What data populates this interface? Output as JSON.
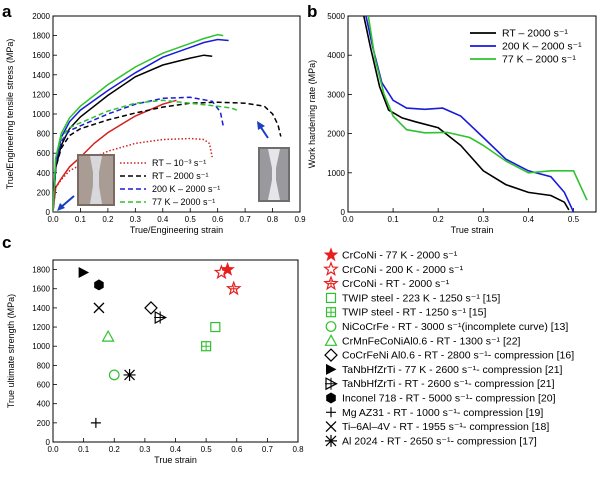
{
  "panel_labels": {
    "a": "a",
    "b": "b",
    "c": "c"
  },
  "chart_data": [
    {
      "panel": "a",
      "type": "line",
      "xlabel": "True/Engineering strain",
      "ylabel": "True/Engineering tensile stress (MPa)",
      "xlim": [
        0.0,
        0.9
      ],
      "ylim": [
        0,
        2000
      ],
      "xticks": [
        "0.0",
        "0.1",
        "0.2",
        "0.3",
        "0.4",
        "0.5",
        "0.6",
        "0.7",
        "0.8",
        "0.9"
      ],
      "yticks": [
        "0",
        "200",
        "400",
        "600",
        "800",
        "1000",
        "1200",
        "1400",
        "1600",
        "1800",
        "2000"
      ],
      "legend_position": "bottom-right",
      "series": [
        {
          "name": "RT – 10⁻³ s⁻¹",
          "color": "#d42020",
          "dash": "dotted",
          "kind": "engineering",
          "x": [
            0,
            0.01,
            0.03,
            0.06,
            0.1,
            0.15,
            0.2,
            0.3,
            0.4,
            0.5,
            0.55,
            0.57,
            0.58
          ],
          "y": [
            0,
            250,
            330,
            420,
            480,
            560,
            620,
            700,
            740,
            750,
            740,
            700,
            560
          ]
        },
        {
          "name": "RT – 10⁻³ s⁻¹",
          "color": "#d42020",
          "dash": "solid",
          "kind": "true",
          "x": [
            0,
            0.01,
            0.03,
            0.06,
            0.1,
            0.15,
            0.2,
            0.3,
            0.4,
            0.45
          ],
          "y": [
            0,
            250,
            340,
            460,
            560,
            700,
            810,
            980,
            1100,
            1140
          ]
        },
        {
          "name": "RT – 2000 s⁻¹",
          "color": "#000000",
          "dash": "dashed",
          "kind": "engineering",
          "x": [
            0,
            0.01,
            0.03,
            0.06,
            0.1,
            0.2,
            0.3,
            0.4,
            0.5,
            0.6,
            0.7,
            0.77,
            0.8,
            0.82,
            0.83
          ],
          "y": [
            0,
            450,
            650,
            780,
            850,
            940,
            1010,
            1070,
            1110,
            1120,
            1110,
            1080,
            1000,
            890,
            770
          ]
        },
        {
          "name": "RT – 2000 s⁻¹",
          "color": "#000000",
          "dash": "solid",
          "kind": "true",
          "x": [
            0,
            0.01,
            0.03,
            0.06,
            0.1,
            0.2,
            0.3,
            0.4,
            0.5,
            0.55,
            0.58
          ],
          "y": [
            0,
            450,
            680,
            850,
            970,
            1190,
            1380,
            1500,
            1570,
            1600,
            1590
          ]
        },
        {
          "name": "200 K – 2000 s⁻¹",
          "color": "#1a1adb",
          "dash": "dashed",
          "kind": "engineering",
          "x": [
            0,
            0.01,
            0.03,
            0.06,
            0.1,
            0.2,
            0.3,
            0.4,
            0.5,
            0.58,
            0.61,
            0.62
          ],
          "y": [
            0,
            500,
            720,
            830,
            880,
            1000,
            1100,
            1160,
            1170,
            1130,
            1020,
            880
          ]
        },
        {
          "name": "200 K – 2000 s⁻¹",
          "color": "#1a1adb",
          "dash": "solid",
          "kind": "true",
          "x": [
            0,
            0.01,
            0.03,
            0.06,
            0.1,
            0.2,
            0.3,
            0.4,
            0.5,
            0.55,
            0.6,
            0.64
          ],
          "y": [
            0,
            500,
            760,
            920,
            1040,
            1240,
            1420,
            1580,
            1680,
            1730,
            1760,
            1750
          ]
        },
        {
          "name": "77 K – 2000 s⁻¹",
          "color": "#2ec22e",
          "dash": "dashed",
          "kind": "engineering",
          "x": [
            0,
            0.01,
            0.03,
            0.06,
            0.1,
            0.2,
            0.3,
            0.4,
            0.5,
            0.6,
            0.65,
            0.67
          ],
          "y": [
            0,
            550,
            760,
            860,
            910,
            1030,
            1110,
            1140,
            1110,
            1080,
            1060,
            1040
          ]
        },
        {
          "name": "77 K – 2000 s⁻¹",
          "color": "#2ec22e",
          "dash": "solid",
          "kind": "true",
          "x": [
            0,
            0.01,
            0.03,
            0.06,
            0.1,
            0.2,
            0.3,
            0.4,
            0.5,
            0.55,
            0.6,
            0.62
          ],
          "y": [
            0,
            550,
            800,
            960,
            1080,
            1300,
            1480,
            1620,
            1720,
            1770,
            1810,
            1800
          ]
        }
      ]
    },
    {
      "panel": "b",
      "type": "line",
      "xlabel": "True strain",
      "ylabel": "Work hardening rate (MPa)",
      "xlim": [
        0.0,
        0.55
      ],
      "ylim": [
        0,
        5000
      ],
      "xticks": [
        "0.0",
        "0.1",
        "0.2",
        "0.3",
        "0.4",
        "0.5"
      ],
      "yticks": [
        "0",
        "1000",
        "2000",
        "3000",
        "4000",
        "5000"
      ],
      "legend_position": "top-right",
      "series": [
        {
          "name": "RT – 2000 s⁻¹",
          "color": "#000000",
          "x": [
            0.035,
            0.05,
            0.07,
            0.09,
            0.12,
            0.15,
            0.2,
            0.25,
            0.3,
            0.35,
            0.4,
            0.45,
            0.48,
            0.49
          ],
          "y": [
            5000,
            4200,
            3200,
            2600,
            2400,
            2300,
            2150,
            1700,
            1050,
            700,
            500,
            420,
            250,
            50
          ]
        },
        {
          "name": "200 K – 2000 s⁻¹",
          "color": "#1a1adb",
          "x": [
            0.04,
            0.055,
            0.075,
            0.1,
            0.13,
            0.17,
            0.21,
            0.25,
            0.3,
            0.35,
            0.4,
            0.45,
            0.48,
            0.5
          ],
          "y": [
            5000,
            4200,
            3300,
            2850,
            2650,
            2620,
            2650,
            2450,
            1900,
            1350,
            1050,
            900,
            500,
            0
          ]
        },
        {
          "name": "77 K – 2000 s⁻¹",
          "color": "#2ec22e",
          "x": [
            0.045,
            0.06,
            0.08,
            0.1,
            0.13,
            0.17,
            0.22,
            0.27,
            0.3,
            0.35,
            0.4,
            0.45,
            0.5,
            0.53
          ],
          "y": [
            5000,
            3900,
            3000,
            2450,
            2100,
            2020,
            2030,
            1900,
            1700,
            1300,
            1000,
            1050,
            1050,
            300
          ]
        }
      ]
    },
    {
      "panel": "c",
      "type": "scatter",
      "xlabel": "True strain",
      "ylabel": "True ultimate strength (MPa)",
      "xlim": [
        0.0,
        0.8
      ],
      "ylim": [
        0,
        1900
      ],
      "xticks": [
        "0.0",
        "0.1",
        "0.2",
        "0.3",
        "0.4",
        "0.5",
        "0.6",
        "0.7",
        "0.8"
      ],
      "yticks": [
        "0",
        "200",
        "400",
        "600",
        "800",
        "1000",
        "1200",
        "1400",
        "1600",
        "1800"
      ],
      "legend_position": "right, outside",
      "series": [
        {
          "name": "CrCoNi - 77 K - 2000 s⁻¹",
          "marker": "star-filled",
          "color": "#e81e1e",
          "x": [
            0.57
          ],
          "y": [
            1800
          ]
        },
        {
          "name": "CrCoNi - 200 K - 2000 s⁻¹",
          "marker": "star-open",
          "color": "#e81e1e",
          "x": [
            0.55
          ],
          "y": [
            1770
          ]
        },
        {
          "name": "CrCoNi - RT - 2000 s⁻¹",
          "marker": "star-plus",
          "color": "#e81e1e",
          "x": [
            0.59
          ],
          "y": [
            1600
          ]
        },
        {
          "name": "TWIP steel - 223 K - 1250 s⁻¹ [15]",
          "marker": "square-open",
          "color": "#2ec22e",
          "x": [
            0.53
          ],
          "y": [
            1200
          ]
        },
        {
          "name": "TWIP steel - RT - 1250 s⁻¹ [15]",
          "marker": "square-plus",
          "color": "#2ec22e",
          "x": [
            0.5
          ],
          "y": [
            1000
          ]
        },
        {
          "name": "NiCoCrFe - RT - 3000 s⁻¹(incomplete curve) [13]",
          "marker": "circle-open",
          "color": "#2ec22e",
          "x": [
            0.2
          ],
          "y": [
            700
          ]
        },
        {
          "name": "CrMnFeCoNiAl0.6 - RT - 1300 s⁻¹ [22]",
          "marker": "triangle-open",
          "color": "#2ec22e",
          "x": [
            0.18
          ],
          "y": [
            1100
          ]
        },
        {
          "name": "CoCrFeNi Al0.6 - RT - 2800 s⁻¹- compression [16]",
          "marker": "diamond-open",
          "color": "#000000",
          "x": [
            0.32
          ],
          "y": [
            1400
          ]
        },
        {
          "name": "TaNbHfZrTi - 77 K - 2600 s⁻¹- compression [21]",
          "marker": "triangle-right-filled",
          "color": "#000000",
          "x": [
            0.1
          ],
          "y": [
            1770
          ]
        },
        {
          "name": "TaNbHfZrTi - RT - 2600 s⁻¹- compression [21]",
          "marker": "triangle-right-plus",
          "color": "#000000",
          "x": [
            0.35
          ],
          "y": [
            1300
          ]
        },
        {
          "name": "Inconel 718 - RT - 5000 s⁻¹- compression [20]",
          "marker": "hexagon-filled",
          "color": "#000000",
          "x": [
            0.15
          ],
          "y": [
            1640
          ]
        },
        {
          "name": "Mg AZ31 - RT - 1000 s⁻¹- compression [19]",
          "marker": "plus",
          "color": "#000000",
          "x": [
            0.14
          ],
          "y": [
            200
          ]
        },
        {
          "name": "Ti–6Al–4V - RT - 1955 s⁻¹- compression [18]",
          "marker": "x",
          "color": "#000000",
          "x": [
            0.15
          ],
          "y": [
            1400
          ]
        },
        {
          "name": "Al 2024 - RT - 2650 s⁻¹- compression [17]",
          "marker": "asterisk",
          "color": "#000000",
          "x": [
            0.25
          ],
          "y": [
            700
          ]
        }
      ]
    }
  ]
}
